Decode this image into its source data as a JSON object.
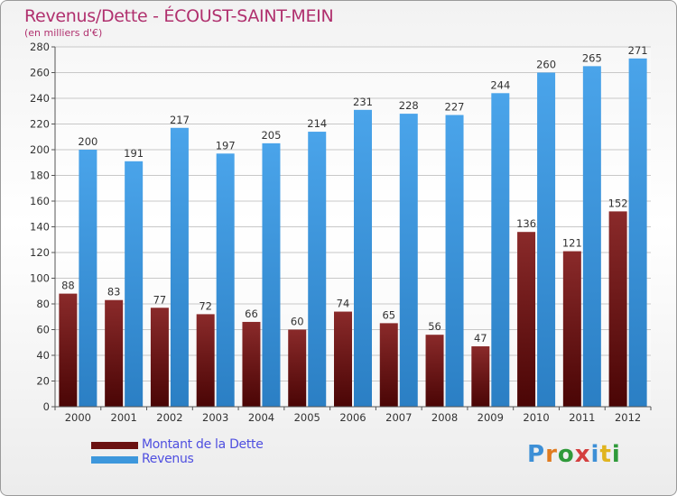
{
  "header": {
    "title": "Revenus/Dette - ÉCOUST-SAINT-MEIN",
    "subtitle": "(en milliers d'€)"
  },
  "chart_data": {
    "type": "bar",
    "title": "Revenus/Dette - ÉCOUST-SAINT-MEIN",
    "ylabel": "(en milliers d'€)",
    "xlabel": "",
    "ylim": [
      0,
      280
    ],
    "ytick_step": 20,
    "grid": true,
    "categories": [
      "2000",
      "2001",
      "2002",
      "2003",
      "2004",
      "2005",
      "2006",
      "2007",
      "2008",
      "2009",
      "2010",
      "2011",
      "2012"
    ],
    "series": [
      {
        "name": "Montant de la Dette",
        "color": "#7a1c1c",
        "values": [
          88,
          83,
          77,
          72,
          66,
          60,
          74,
          65,
          56,
          47,
          136,
          121,
          152
        ]
      },
      {
        "name": "Revenus",
        "color": "#3d97dc",
        "values": [
          200,
          191,
          217,
          197,
          205,
          214,
          231,
          228,
          227,
          244,
          260,
          265,
          271
        ]
      }
    ]
  },
  "legend": {
    "items": [
      {
        "label": "Montant de la Dette",
        "color": "#7a1c1c"
      },
      {
        "label": "Revenus",
        "color": "#3d97dc"
      }
    ]
  },
  "logo": {
    "text": "Proxiti"
  }
}
